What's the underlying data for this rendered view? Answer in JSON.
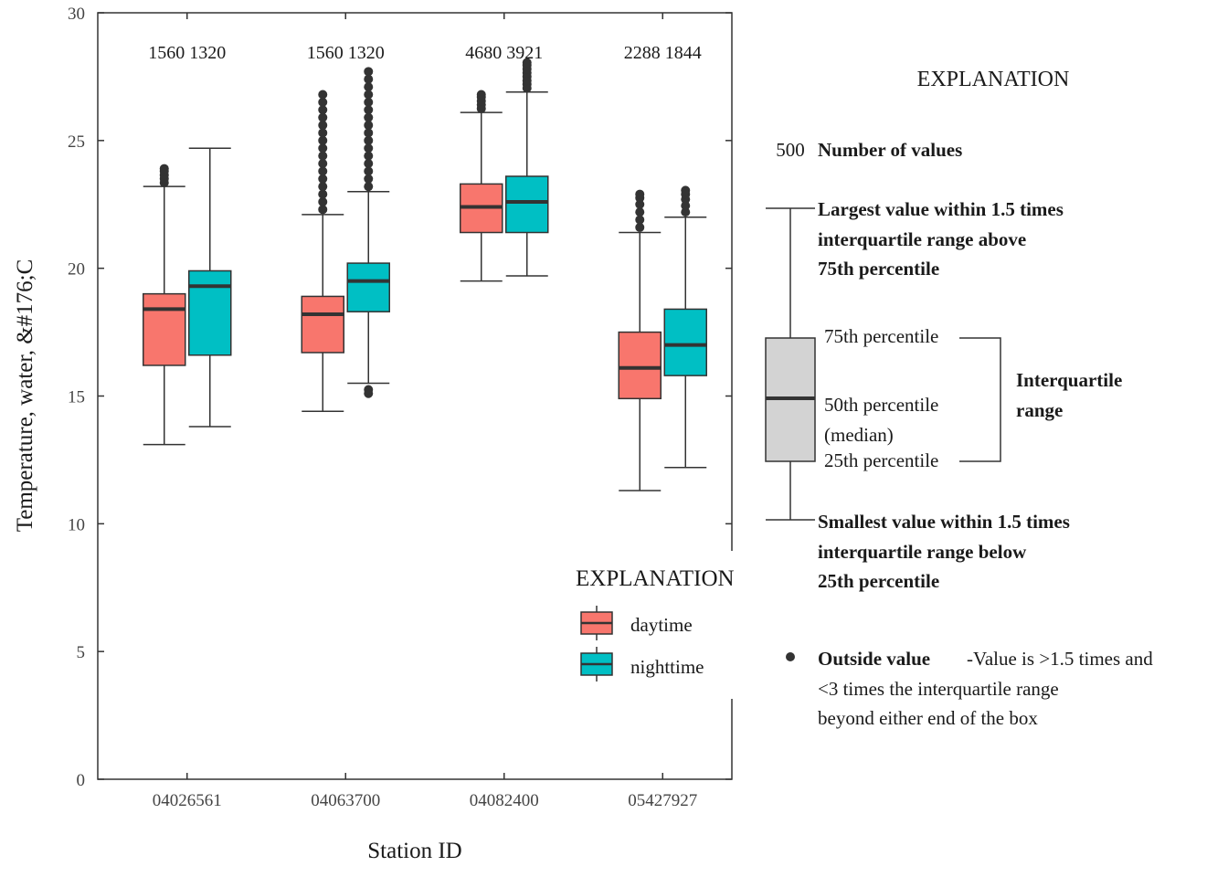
{
  "chart_data": {
    "type": "boxplot",
    "xlabel": "Station ID",
    "ylabel": "Temperature, water, &#176;C",
    "ylim": [
      0,
      30
    ],
    "yticks": [
      0,
      5,
      10,
      15,
      20,
      25,
      30
    ],
    "categories": [
      "04026561",
      "04063700",
      "04082400",
      "05427927"
    ],
    "counts": [
      "1560 1320",
      "1560 1320",
      "4680 3921",
      "2288 1844"
    ],
    "series": [
      {
        "name": "daytime",
        "color": "#F8766D",
        "boxes": [
          {
            "min": 13.1,
            "q1": 16.2,
            "median": 18.4,
            "q3": 19.0,
            "max": 23.2,
            "outliers": [
              23.35,
              23.5,
              23.65,
              23.8,
              23.9
            ]
          },
          {
            "min": 14.4,
            "q1": 16.7,
            "median": 18.2,
            "q3": 18.9,
            "max": 22.1,
            "outliers": [
              22.3,
              22.6,
              22.9,
              23.2,
              23.5,
              23.8,
              24.1,
              24.4,
              24.7,
              25.0,
              25.3,
              25.6,
              25.9,
              26.2,
              26.5,
              26.8
            ]
          },
          {
            "min": 19.5,
            "q1": 21.4,
            "median": 22.4,
            "q3": 23.3,
            "max": 26.1,
            "outliers": [
              26.25,
              26.4,
              26.55,
              26.7,
              26.8
            ]
          },
          {
            "min": 11.3,
            "q1": 14.9,
            "median": 16.1,
            "q3": 17.5,
            "max": 21.4,
            "outliers": [
              21.6,
              21.9,
              22.2,
              22.5,
              22.75,
              22.9
            ]
          }
        ]
      },
      {
        "name": "nighttime",
        "color": "#00BFC4",
        "boxes": [
          {
            "min": 13.8,
            "q1": 16.6,
            "median": 19.3,
            "q3": 19.9,
            "max": 24.7,
            "outliers": []
          },
          {
            "min": 15.5,
            "q1": 18.3,
            "median": 19.5,
            "q3": 20.2,
            "max": 23.0,
            "outliers": [
              15.1,
              15.25,
              23.2,
              23.5,
              23.8,
              24.1,
              24.4,
              24.7,
              25.0,
              25.3,
              25.6,
              25.9,
              26.2,
              26.5,
              26.8,
              27.1,
              27.4,
              27.7
            ]
          },
          {
            "min": 19.7,
            "q1": 21.4,
            "median": 22.6,
            "q3": 23.6,
            "max": 26.9,
            "outliers": [
              27.05,
              27.2,
              27.35,
              27.5,
              27.65,
              27.8,
              27.95,
              28.05
            ]
          },
          {
            "min": 12.2,
            "q1": 15.8,
            "median": 17.0,
            "q3": 18.4,
            "max": 22.0,
            "outliers": [
              22.2,
              22.45,
              22.7,
              22.9,
              23.05
            ]
          }
        ]
      }
    ],
    "legend": {
      "title": "EXPLANATION",
      "items": [
        "daytime",
        "nighttime"
      ],
      "placement": "bottom-right"
    }
  },
  "explanation": {
    "title": "EXPLANATION",
    "count_example": "500",
    "count_label": "Number of values",
    "largest_lines": [
      "Largest value within 1.5 times",
      "interquartile range above",
      "75th percentile"
    ],
    "p75": "75th percentile",
    "p50_lines": [
      "50th percentile",
      "(median)"
    ],
    "p25": "25th percentile",
    "iqr_lines": [
      "Interquartile",
      "range"
    ],
    "smallest_lines": [
      "Smallest value within 1.5 times",
      "interquartile range below",
      "25th percentile"
    ],
    "outside_label": "Outside value",
    "outside_desc_lines": [
      "-Value is >1.5 times and",
      "<3 times the interquartile range",
      "beyond either end of the box"
    ],
    "box_color": "#D3D3D3"
  }
}
